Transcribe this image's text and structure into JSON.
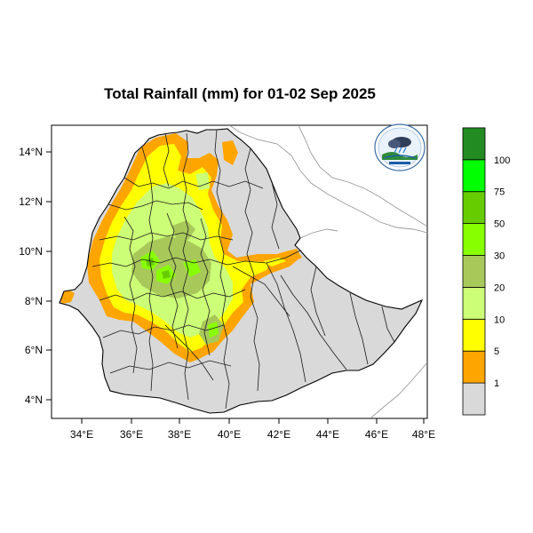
{
  "title": "Total Rainfall (mm) for 01-02 Sep 2025",
  "axes": {
    "lon_labels": [
      "34°E",
      "36°E",
      "38°E",
      "40°E",
      "42°E",
      "44°E",
      "46°E",
      "48°E"
    ],
    "lat_labels": [
      "14°N",
      "12°N",
      "10°N",
      "8°N",
      "6°N",
      "4°N"
    ]
  },
  "legend": {
    "labels": [
      "1",
      "5",
      "10",
      "20",
      "30",
      "50",
      "75",
      "100"
    ],
    "colors": [
      "#d9d9d9",
      "#ffa500",
      "#ffff00",
      "#ccff77",
      "#a8c95a",
      "#88ff00",
      "#66cc00",
      "#00ff00",
      "#228b22"
    ]
  },
  "logo_icon": "ethiopian-meteorology-institute-logo"
}
